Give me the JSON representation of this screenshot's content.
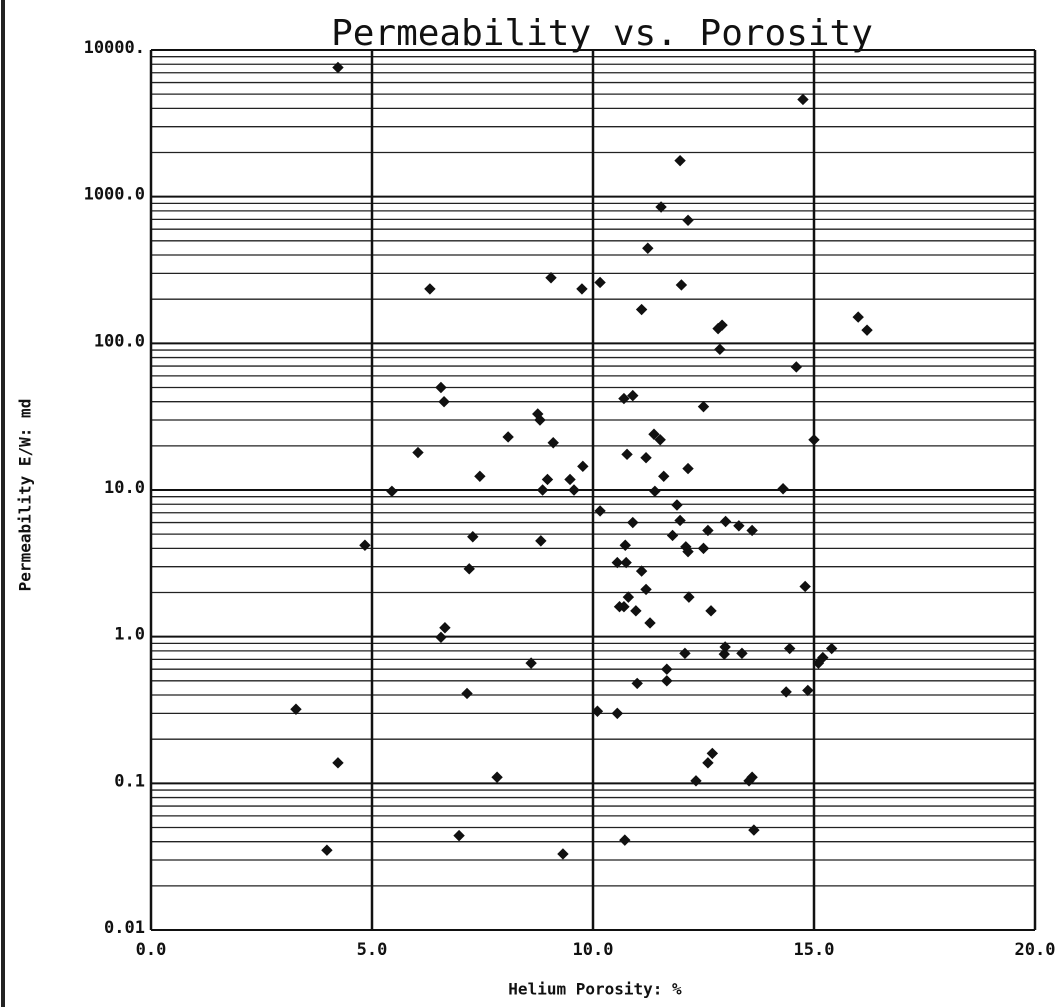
{
  "chart_data": {
    "type": "scatter",
    "title": "Permeability vs. Porosity",
    "x_label": "Helium Porosity: %",
    "y_label": "Permeability E/W: md",
    "xlim": [
      0,
      20
    ],
    "xticks": [
      {
        "value": 0,
        "label": "0.0"
      },
      {
        "value": 5,
        "label": "5.0"
      },
      {
        "value": 10,
        "label": "10.0"
      },
      {
        "value": 15,
        "label": "15.0"
      },
      {
        "value": 20,
        "label": "20.0"
      }
    ],
    "ylim": [
      0.01,
      10000
    ],
    "y_log": true,
    "minor_grid": true,
    "grid": true,
    "yticks": [
      {
        "value": 0.01,
        "label": "0.01"
      },
      {
        "value": 0.1,
        "label": "0.1"
      },
      {
        "value": 1,
        "label": "1.0"
      },
      {
        "value": 10,
        "label": "10.0"
      },
      {
        "value": 100,
        "label": "100.0"
      },
      {
        "value": 1000,
        "label": "1000.0"
      },
      {
        "value": 10000,
        "label": "10000."
      }
    ],
    "color": "#111111",
    "x": [
      4.23,
      14.75,
      11.97,
      11.54,
      12.15,
      11.24,
      6.31,
      9.05,
      9.75,
      10.16,
      12.0,
      11.1,
      12.83,
      12.92,
      12.87,
      16.0,
      16.2,
      14.6,
      6.56,
      6.63,
      10.7,
      10.9,
      12.5,
      8.75,
      8.8,
      8.08,
      9.1,
      11.38,
      11.52,
      15.0,
      6.04,
      10.77,
      11.2,
      12.15,
      9.77,
      7.44,
      8.97,
      9.48,
      11.6,
      8.86,
      9.57,
      11.4,
      5.45,
      14.3,
      11.9,
      10.16,
      10.9,
      11.97,
      13.0,
      13.3,
      12.6,
      13.6,
      11.8,
      7.28,
      4.84,
      8.82,
      10.73,
      12.1,
      12.15,
      12.5,
      10.55,
      10.75,
      11.1,
      7.2,
      14.8,
      11.2,
      10.8,
      10.7,
      10.6,
      12.17,
      10.97,
      12.67,
      11.29,
      6.65,
      6.56,
      12.99,
      12.97,
      14.45,
      15.4,
      12.08,
      13.37,
      15.2,
      15.1,
      8.6,
      11.67,
      11.67,
      11.0,
      14.37,
      7.15,
      14.86,
      3.28,
      10.1,
      10.55,
      4.23,
      12.7,
      12.6,
      7.83,
      12.33,
      13.6,
      13.53,
      13.64,
      6.97,
      10.72,
      3.98,
      9.32
    ],
    "values": [
      7600,
      4600,
      1760,
      850,
      690,
      445,
      235,
      280,
      235,
      260,
      250,
      170,
      126,
      133,
      91,
      151,
      123,
      69,
      50,
      40,
      42,
      44,
      37,
      33,
      30,
      23,
      21,
      24,
      22,
      22,
      18,
      17.5,
      16.6,
      14,
      14.5,
      12.4,
      11.8,
      11.8,
      12.4,
      10,
      10,
      9.8,
      9.8,
      10.2,
      7.9,
      7.2,
      6.0,
      6.2,
      6.1,
      5.7,
      5.3,
      5.3,
      4.9,
      4.8,
      4.2,
      4.5,
      4.2,
      4.1,
      3.8,
      4.0,
      3.2,
      3.2,
      2.8,
      2.9,
      2.2,
      2.1,
      1.86,
      1.6,
      1.6,
      1.86,
      1.5,
      1.5,
      1.24,
      1.15,
      0.99,
      0.85,
      0.76,
      0.83,
      0.83,
      0.77,
      0.77,
      0.72,
      0.66,
      0.66,
      0.6,
      0.5,
      0.48,
      0.42,
      0.41,
      0.43,
      0.32,
      0.31,
      0.3,
      0.138,
      0.16,
      0.138,
      0.11,
      0.104,
      0.11,
      0.104,
      0.048,
      0.044,
      0.041,
      0.035,
      0.033
    ]
  }
}
